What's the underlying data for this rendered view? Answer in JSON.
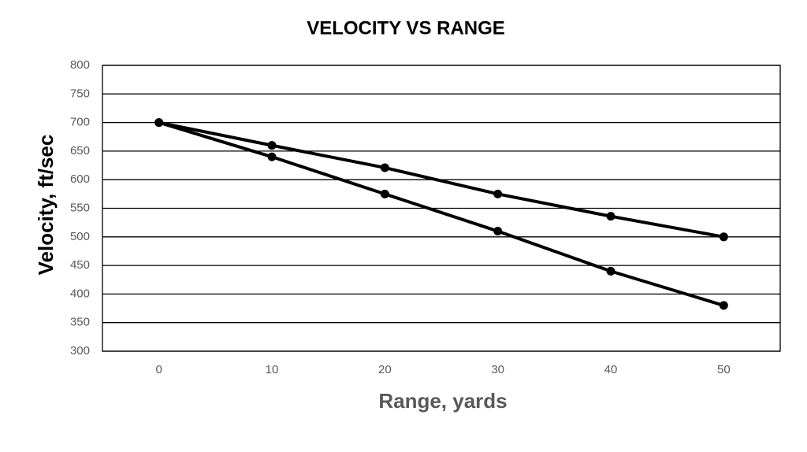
{
  "chart_data": {
    "type": "line",
    "title": "VELOCITY VS RANGE",
    "x_label": "Range, yards",
    "y_label": "Velocity, ft/sec",
    "categories": [
      0,
      10,
      20,
      30,
      40,
      50
    ],
    "series": [
      {
        "color": "#000000",
        "values": [
          700,
          660,
          621,
          575,
          536,
          500
        ]
      },
      {
        "color": "#000000",
        "values": [
          700,
          640,
          575,
          510,
          440,
          380
        ]
      }
    ],
    "ylim": [
      300,
      800
    ],
    "yticks": [
      300,
      350,
      400,
      450,
      500,
      550,
      600,
      650,
      700,
      750,
      800
    ],
    "grid": true
  }
}
